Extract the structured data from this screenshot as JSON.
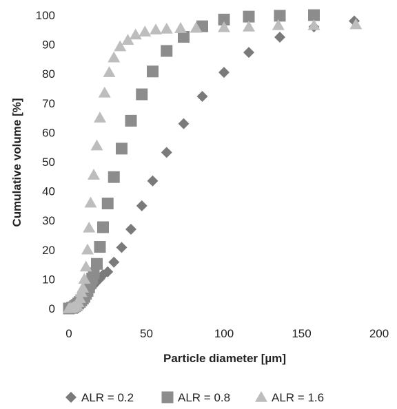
{
  "chart_data": {
    "type": "scatter",
    "xlabel": "Particle diameter [µm]",
    "ylabel": "Cumulative volume [%]",
    "xlim": [
      0,
      200
    ],
    "ylim": [
      0,
      100
    ],
    "xticks": [
      0,
      50,
      100,
      150,
      200
    ],
    "yticks": [
      0,
      10,
      20,
      30,
      40,
      50,
      60,
      70,
      80,
      90,
      100
    ],
    "grid": false,
    "legend_position": "bottom",
    "series": [
      {
        "name": "ALR = 0.2",
        "marker": "diamond",
        "color": "#7a7a7a",
        "x": [
          0,
          1,
          2,
          3,
          4,
          5,
          6,
          7,
          8,
          9,
          10,
          11,
          12,
          13,
          14,
          15,
          16,
          17,
          18,
          20,
          22,
          25,
          29,
          34,
          40,
          47,
          54,
          63,
          74,
          86,
          100,
          116,
          136,
          158,
          184
        ],
        "y": [
          0,
          0.3,
          0.7,
          1.1,
          1.5,
          2.0,
          2.5,
          3.0,
          3.5,
          4.0,
          4.5,
          5.0,
          5.6,
          6.2,
          6.8,
          7.4,
          8.0,
          8.6,
          9.2,
          10.2,
          11.5,
          12.5,
          15.8,
          20.8,
          27,
          35,
          43.5,
          53.2,
          63,
          72.3,
          80.5,
          87.3,
          92.5,
          96,
          98
        ]
      },
      {
        "name": "ALR = 0.8",
        "marker": "square",
        "color": "#8c8c8c",
        "x": [
          0,
          2,
          3,
          4,
          5,
          6,
          7,
          8,
          9,
          10,
          11,
          12,
          13,
          14,
          15,
          16,
          18,
          20,
          22,
          25,
          29,
          34,
          40,
          47,
          54,
          63,
          74,
          86,
          100,
          116,
          136,
          158
        ],
        "y": [
          0,
          0.2,
          0.4,
          0.8,
          1.2,
          1.7,
          2.2,
          2.8,
          3.4,
          4.0,
          5.0,
          6.0,
          7.2,
          8.6,
          10.2,
          12.0,
          15.2,
          21,
          27.7,
          35.8,
          44.8,
          54.5,
          64,
          73,
          80.8,
          87.8,
          92.6,
          96.2,
          98.5,
          99.5,
          99.8,
          100
        ]
      },
      {
        "name": "ALR = 1.6",
        "marker": "triangle",
        "color": "#bdbdbd",
        "x": [
          0,
          1,
          2,
          3,
          4,
          5,
          6,
          7,
          8,
          9,
          10,
          11,
          12,
          13,
          14,
          16,
          18,
          20,
          23,
          26,
          29,
          33,
          38,
          43,
          49,
          56,
          63,
          72,
          82,
          100,
          116,
          135,
          158,
          185
        ],
        "y": [
          0,
          0.1,
          0.2,
          0.4,
          0.7,
          1.1,
          2.0,
          3.5,
          5.5,
          7.0,
          10,
          14.2,
          20,
          27.5,
          36,
          45.5,
          55.5,
          65,
          73.5,
          80.5,
          85.5,
          89.3,
          91.5,
          93.3,
          94.3,
          95.0,
          95.3,
          95.5,
          95.6,
          95.8,
          96.0,
          96.5,
          96.5,
          96.8
        ]
      }
    ]
  }
}
